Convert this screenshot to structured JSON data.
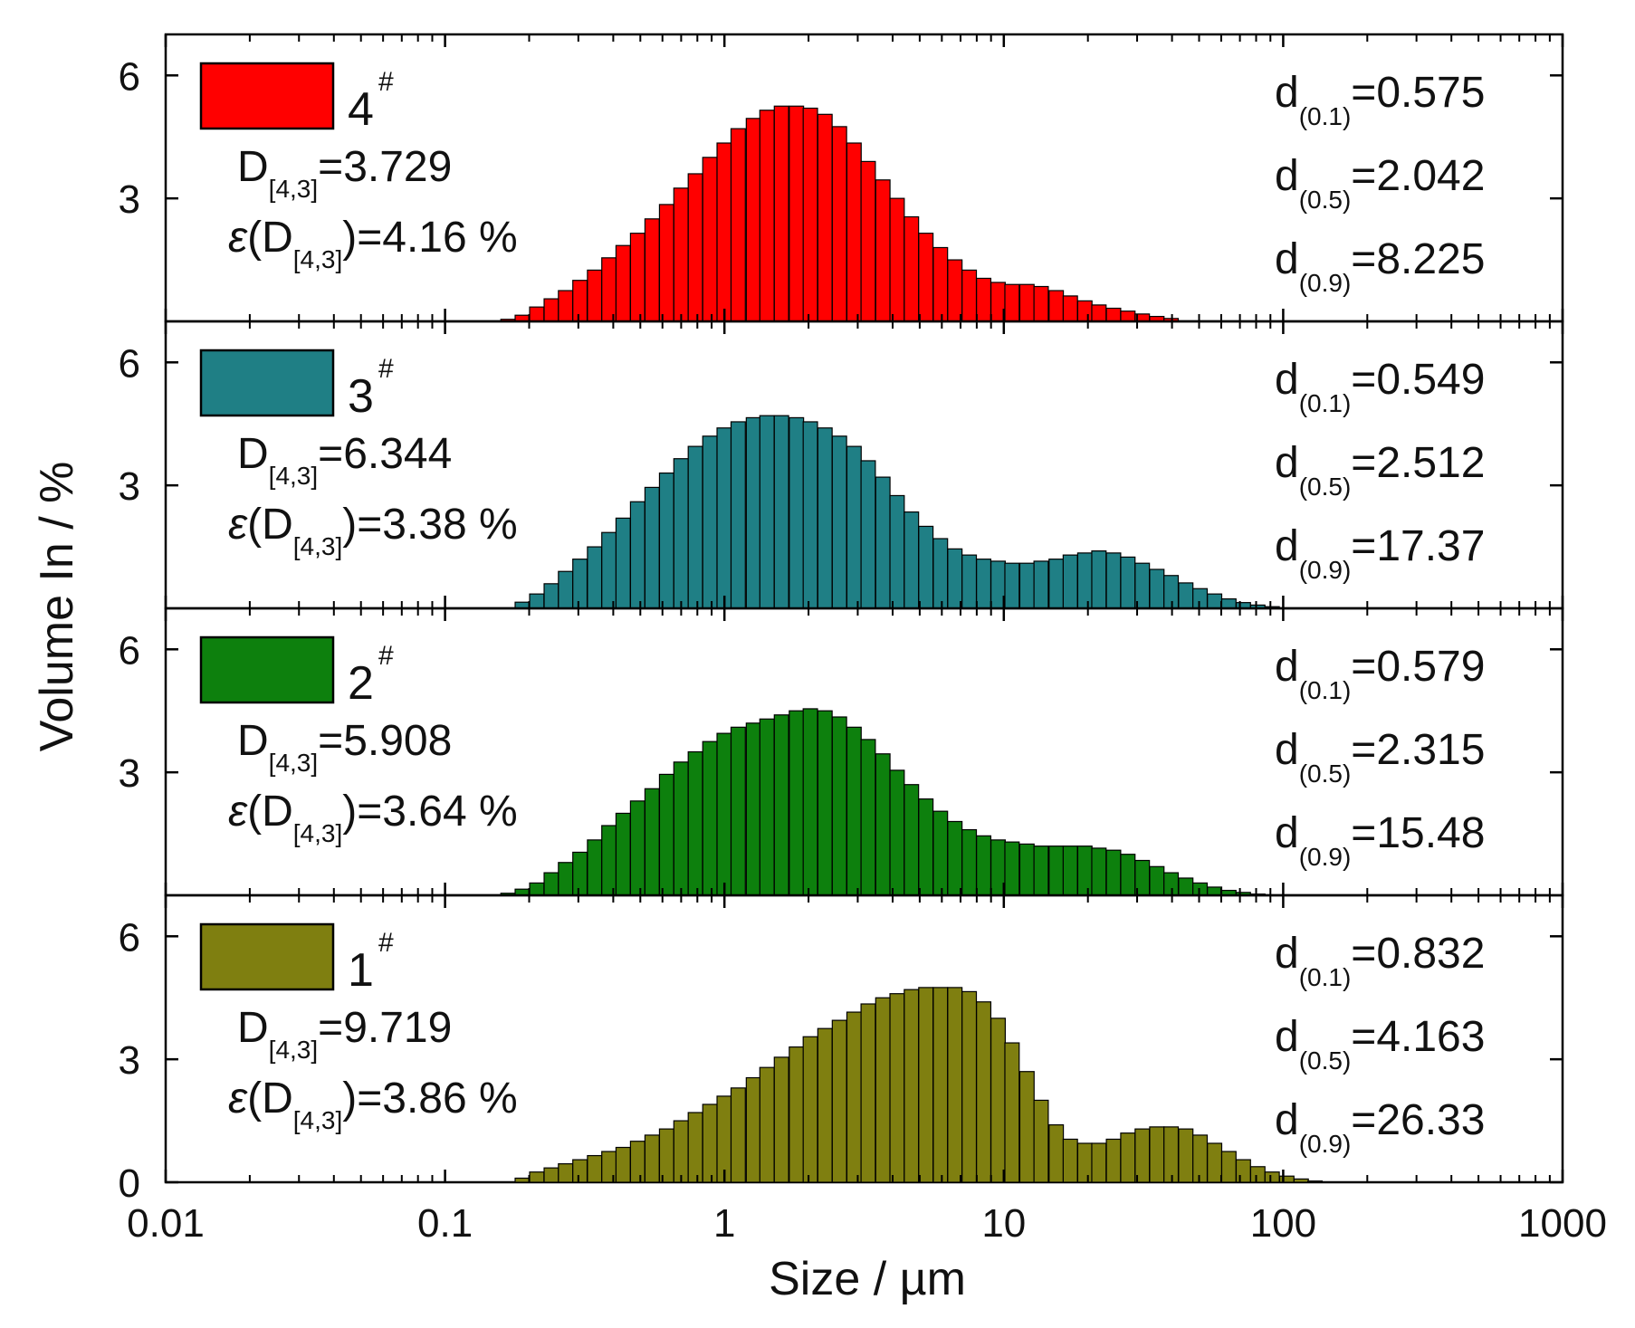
{
  "figure": {
    "xlabel": "Size / µm",
    "ylabel": "Volume In / %",
    "x_tick_labels": [
      "0.01",
      "0.1",
      "1",
      "10",
      "100",
      "1000"
    ],
    "y_tick_labels": [
      "0",
      "3",
      "6"
    ]
  },
  "chart_data": [
    {
      "type": "bar",
      "sample": "4",
      "legend_label": "4",
      "legend_sup": "#",
      "color": "#ff0000",
      "xscale": "log",
      "xlim": [
        0.01,
        1000
      ],
      "ylim": [
        0,
        7
      ],
      "D43": "3.729",
      "eps": "4.16 %",
      "d01": "0.575",
      "d05": "2.042",
      "d09": "8.225",
      "x": [
        0.168,
        0.189,
        0.213,
        0.24,
        0.27,
        0.304,
        0.343,
        0.386,
        0.434,
        0.489,
        0.551,
        0.621,
        0.699,
        0.787,
        0.887,
        0.998,
        1.12,
        1.27,
        1.42,
        1.6,
        1.81,
        2.03,
        2.29,
        2.58,
        2.91,
        3.27,
        3.69,
        4.15,
        4.67,
        5.26,
        5.93,
        6.68,
        7.52,
        8.47,
        9.54,
        10.7,
        12.1,
        13.6,
        15.4,
        17.3,
        19.5,
        21.9,
        24.7,
        27.8,
        31.3,
        35.3,
        39.7
      ],
      "values": [
        0.05,
        0.15,
        0.35,
        0.55,
        0.75,
        1.0,
        1.25,
        1.55,
        1.85,
        2.15,
        2.5,
        2.85,
        3.25,
        3.6,
        4.0,
        4.35,
        4.7,
        4.95,
        5.15,
        5.25,
        5.25,
        5.2,
        5.05,
        4.75,
        4.35,
        3.9,
        3.45,
        3.0,
        2.55,
        2.15,
        1.8,
        1.5,
        1.25,
        1.05,
        0.95,
        0.9,
        0.9,
        0.85,
        0.75,
        0.62,
        0.5,
        0.4,
        0.32,
        0.25,
        0.18,
        0.12,
        0.07
      ]
    },
    {
      "type": "bar",
      "sample": "3",
      "legend_label": "3",
      "legend_sup": "#",
      "color": "#1f7f85",
      "xscale": "log",
      "xlim": [
        0.01,
        1000
      ],
      "ylim": [
        0,
        7
      ],
      "D43": "6.344",
      "eps": "3.38 %",
      "d01": "0.549",
      "d05": "2.512",
      "d09": "17.37",
      "x": [
        0.189,
        0.213,
        0.24,
        0.27,
        0.304,
        0.343,
        0.386,
        0.434,
        0.489,
        0.551,
        0.621,
        0.699,
        0.787,
        0.887,
        0.998,
        1.12,
        1.27,
        1.42,
        1.6,
        1.81,
        2.03,
        2.29,
        2.58,
        2.91,
        3.27,
        3.69,
        4.15,
        4.67,
        5.26,
        5.93,
        6.68,
        7.52,
        8.47,
        9.54,
        10.7,
        12.1,
        13.6,
        15.4,
        17.3,
        19.5,
        21.9,
        24.7,
        27.8,
        31.3,
        35.3,
        39.7,
        44.8,
        50.4,
        56.8,
        63.9,
        72.0,
        81.1,
        91.3
      ],
      "values": [
        0.15,
        0.35,
        0.6,
        0.9,
        1.2,
        1.5,
        1.85,
        2.2,
        2.6,
        2.95,
        3.3,
        3.65,
        3.95,
        4.2,
        4.4,
        4.55,
        4.65,
        4.7,
        4.7,
        4.65,
        4.55,
        4.4,
        4.2,
        3.95,
        3.6,
        3.2,
        2.75,
        2.35,
        2.0,
        1.7,
        1.45,
        1.3,
        1.2,
        1.15,
        1.1,
        1.1,
        1.15,
        1.2,
        1.3,
        1.35,
        1.4,
        1.35,
        1.25,
        1.1,
        0.95,
        0.8,
        0.62,
        0.48,
        0.35,
        0.23,
        0.14,
        0.08,
        0.04
      ]
    },
    {
      "type": "bar",
      "sample": "2",
      "legend_label": "2",
      "legend_sup": "#",
      "color": "#0d800d",
      "xscale": "log",
      "xlim": [
        0.01,
        1000
      ],
      "ylim": [
        0,
        7
      ],
      "D43": "5.908",
      "eps": "3.64 %",
      "d01": "0.579",
      "d05": "2.315",
      "d09": "15.48",
      "x": [
        0.168,
        0.189,
        0.213,
        0.24,
        0.27,
        0.304,
        0.343,
        0.386,
        0.434,
        0.489,
        0.551,
        0.621,
        0.699,
        0.787,
        0.887,
        0.998,
        1.12,
        1.27,
        1.42,
        1.6,
        1.81,
        2.03,
        2.29,
        2.58,
        2.91,
        3.27,
        3.69,
        4.15,
        4.67,
        5.26,
        5.93,
        6.68,
        7.52,
        8.47,
        9.54,
        10.7,
        12.1,
        13.6,
        15.4,
        17.3,
        19.5,
        21.9,
        24.7,
        27.8,
        31.3,
        35.3,
        39.7,
        44.8,
        50.4,
        56.8,
        63.9,
        72.0,
        81.1
      ],
      "values": [
        0.05,
        0.15,
        0.3,
        0.55,
        0.8,
        1.05,
        1.35,
        1.7,
        2.0,
        2.3,
        2.6,
        2.95,
        3.25,
        3.5,
        3.75,
        3.95,
        4.1,
        4.2,
        4.3,
        4.4,
        4.5,
        4.55,
        4.5,
        4.35,
        4.1,
        3.8,
        3.45,
        3.05,
        2.7,
        2.35,
        2.05,
        1.8,
        1.6,
        1.45,
        1.35,
        1.3,
        1.25,
        1.2,
        1.2,
        1.2,
        1.2,
        1.15,
        1.1,
        1.0,
        0.85,
        0.7,
        0.55,
        0.42,
        0.3,
        0.2,
        0.12,
        0.07,
        0.03
      ]
    },
    {
      "type": "bar",
      "sample": "1",
      "legend_label": "1",
      "legend_sup": "#",
      "color": "#7f7f10",
      "xscale": "log",
      "xlim": [
        0.01,
        1000
      ],
      "ylim": [
        0,
        7
      ],
      "D43": "9.719",
      "eps": "3.86 %",
      "d01": "0.832",
      "d05": "4.163",
      "d09": "26.33",
      "x": [
        0.189,
        0.213,
        0.24,
        0.27,
        0.304,
        0.343,
        0.386,
        0.434,
        0.489,
        0.551,
        0.621,
        0.699,
        0.787,
        0.887,
        0.998,
        1.12,
        1.27,
        1.42,
        1.6,
        1.81,
        2.03,
        2.29,
        2.58,
        2.91,
        3.27,
        3.69,
        4.15,
        4.67,
        5.26,
        5.93,
        6.68,
        7.52,
        8.47,
        9.54,
        10.7,
        12.1,
        13.6,
        15.4,
        17.3,
        19.5,
        21.9,
        24.7,
        27.8,
        31.3,
        35.3,
        39.7,
        44.8,
        50.4,
        56.8,
        63.9,
        72.0,
        81.1,
        91.3,
        103,
        116,
        130
      ],
      "values": [
        0.1,
        0.25,
        0.35,
        0.45,
        0.55,
        0.65,
        0.75,
        0.85,
        1.0,
        1.15,
        1.3,
        1.5,
        1.7,
        1.9,
        2.1,
        2.3,
        2.55,
        2.8,
        3.05,
        3.3,
        3.55,
        3.75,
        3.95,
        4.15,
        4.35,
        4.5,
        4.6,
        4.7,
        4.75,
        4.75,
        4.75,
        4.65,
        4.4,
        4.0,
        3.4,
        2.7,
        2.0,
        1.4,
        1.05,
        0.95,
        0.95,
        1.05,
        1.2,
        1.3,
        1.35,
        1.35,
        1.3,
        1.15,
        0.95,
        0.75,
        0.55,
        0.38,
        0.25,
        0.15,
        0.08,
        0.03
      ]
    }
  ]
}
